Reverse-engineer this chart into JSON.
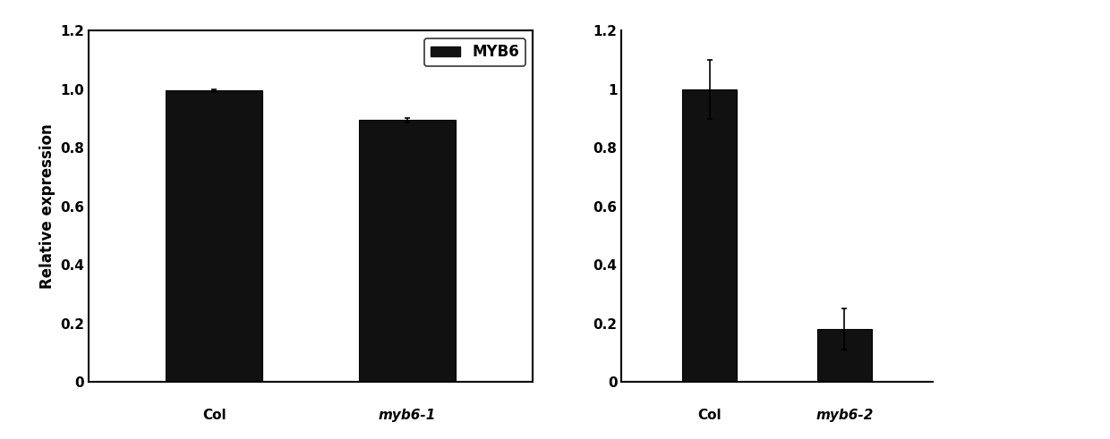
{
  "left_chart": {
    "categories": [
      "Col",
      "myb6-1"
    ],
    "values": [
      0.995,
      0.895
    ],
    "errors": [
      0.005,
      0.008
    ],
    "bar_color": "#111111",
    "ylabel": "Relative expression",
    "ylim": [
      0,
      1.2
    ],
    "yticks": [
      0,
      0.2,
      0.4,
      0.6,
      0.8,
      1.0,
      1.2
    ],
    "ytick_labels": [
      "0",
      "0.2",
      "0.4",
      "0.6",
      "0.8",
      "1.0",
      "1.2"
    ],
    "legend_label": "MYB6",
    "bar_width": 0.5,
    "italic_labels": [
      false,
      true
    ]
  },
  "right_chart": {
    "categories": [
      "Col",
      "myb6-2"
    ],
    "values": [
      1.0,
      0.18
    ],
    "errors": [
      0.1,
      0.07
    ],
    "bar_color": "#111111",
    "ylim": [
      0,
      1.2
    ],
    "yticks": [
      0,
      0.2,
      0.4,
      0.6,
      0.8,
      1.0,
      1.2
    ],
    "ytick_labels": [
      "0",
      "0.2",
      "0.4",
      "0.6",
      "0.8",
      "1",
      "1.2"
    ],
    "bar_width": 0.4,
    "italic_labels": [
      false,
      true
    ]
  },
  "background_color": "#ffffff",
  "bar_edge_color": "#000000",
  "error_color": "#000000",
  "tick_fontsize": 11,
  "label_fontsize": 12,
  "legend_fontsize": 12
}
